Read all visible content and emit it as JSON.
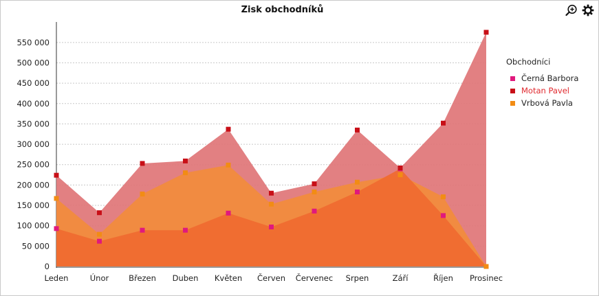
{
  "chart_data": {
    "type": "area",
    "title": "Zisk obchodníků",
    "categories": [
      "Leden",
      "Únor",
      "Březen",
      "Duben",
      "Květen",
      "Červen",
      "Červenec",
      "Srpen",
      "Září",
      "Říjen",
      "Prosinec"
    ],
    "ylim": [
      0,
      575000
    ],
    "yticks": [
      0,
      50000,
      100000,
      150000,
      200000,
      250000,
      300000,
      350000,
      400000,
      450000,
      500000,
      550000
    ],
    "ytick_labels": [
      "0",
      "50 000",
      "100 000",
      "150 000",
      "200 000",
      "250 000",
      "300 000",
      "350 000",
      "400 000",
      "450 000",
      "500 000",
      "550 000"
    ],
    "grid": true,
    "legend_title": "Obchodníci",
    "legend_position": "right",
    "series": [
      {
        "name": "Černá Barbora",
        "color": "#e0197d",
        "fill": "#f06a30",
        "values": [
          93000,
          62000,
          89000,
          89000,
          131000,
          97000,
          136000,
          183000,
          240000,
          125000,
          0
        ]
      },
      {
        "name": "Motan Pavel",
        "color": "#c80f17",
        "fill": "#e07577",
        "values": [
          224000,
          132000,
          253000,
          259000,
          337000,
          180000,
          203000,
          335000,
          242000,
          352000,
          575000
        ]
      },
      {
        "name": "Vrbová Pavla",
        "color": "#f28c14",
        "fill": "#f28c3c",
        "values": [
          167000,
          79000,
          178000,
          230000,
          249000,
          153000,
          183000,
          207000,
          225000,
          171000,
          0
        ]
      }
    ],
    "highlighted_series": "Motan Pavel"
  },
  "toolbar": {
    "zoom_icon": "zoom-in-icon",
    "settings_icon": "gear-icon"
  }
}
